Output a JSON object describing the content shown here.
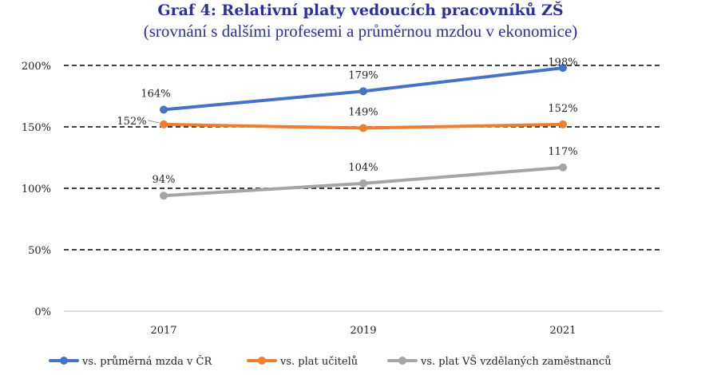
{
  "chart_data": {
    "type": "line",
    "title": "Graf 4: Relativní platy vedoucích pracovníků ZŠ",
    "subtitle": "(srovnání s dalšími profesemi a průměrnou mzdou v ekonomice)",
    "categories": [
      "2017",
      "2019",
      "2021"
    ],
    "ylim": [
      0,
      200
    ],
    "yticks": [
      0,
      50,
      100,
      150,
      200
    ],
    "ytick_labels": [
      "0%",
      "50%",
      "100%",
      "150%",
      "200%"
    ],
    "grid": "dashed horizontal",
    "legend_position": "bottom",
    "series": [
      {
        "name": "vs. průměrná mzda v ČR",
        "color": "#4472c4",
        "values": [
          164,
          179,
          198
        ],
        "labels": [
          "164%",
          "179%",
          "198%"
        ]
      },
      {
        "name": "vs. plat učitelů",
        "color": "#ed7d31",
        "values": [
          152,
          149,
          152
        ],
        "labels": [
          "152%",
          "149%",
          "152%"
        ]
      },
      {
        "name": "vs. plat VŠ vzdělaných zaměstnanců",
        "color": "#a5a5a5",
        "values": [
          94,
          104,
          117
        ],
        "labels": [
          "94%",
          "104%",
          "117%"
        ]
      }
    ]
  }
}
